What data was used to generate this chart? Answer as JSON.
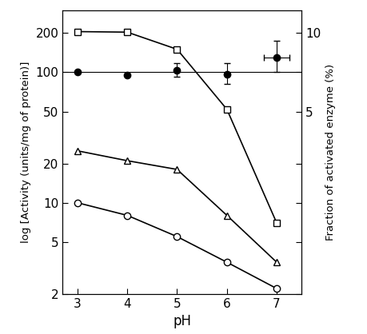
{
  "pH": [
    3,
    4,
    5,
    6,
    7
  ],
  "square_open": [
    205,
    203,
    150,
    52,
    7
  ],
  "triangle_open": [
    25,
    21,
    18,
    8,
    3.5
  ],
  "circle_open": [
    10,
    8,
    5.5,
    3.5,
    2.2
  ],
  "circle_filled_y": [
    100,
    95,
    103,
    97,
    130
  ],
  "circle_filled_yerr_lo": [
    0,
    0,
    10,
    15,
    30
  ],
  "circle_filled_yerr_hi": [
    0,
    0,
    15,
    20,
    45
  ],
  "circle_filled_xerr": [
    0,
    0,
    0,
    0,
    0.25
  ],
  "hline_y": 100,
  "ylabel_left": "log [Activity (units/mg of protein)]",
  "ylabel_right": "Fraction of activated enzyme (%)",
  "xlabel": "pH",
  "yticks_left": [
    2,
    5,
    10,
    20,
    50,
    100,
    200
  ],
  "ylim_log": [
    2,
    300
  ],
  "xlim": [
    2.7,
    7.5
  ],
  "xticks": [
    3,
    4,
    5,
    6,
    7
  ],
  "figsize": [
    4.6,
    4.18
  ],
  "dpi": 100
}
